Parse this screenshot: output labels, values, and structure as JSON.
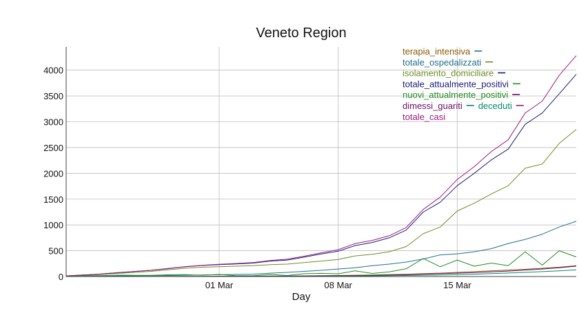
{
  "chart_data": {
    "type": "line",
    "title": "Veneto Region",
    "xlabel": "Day",
    "ylabel": "",
    "xlim": [
      "2020-02-21",
      "2020-03-22"
    ],
    "ylim": [
      0,
      4450
    ],
    "grid": true,
    "legend_position": "top-right",
    "x_ticks": [
      {
        "date": "2020-03-01",
        "label": "01 Mar"
      },
      {
        "date": "2020-03-08",
        "label": "08 Mar"
      },
      {
        "date": "2020-03-15",
        "label": "15 Mar"
      }
    ],
    "y_ticks": [
      0,
      500,
      1000,
      1500,
      2000,
      2500,
      3000,
      3500,
      4000
    ],
    "x": [
      "2020-02-21",
      "2020-02-22",
      "2020-02-23",
      "2020-02-24",
      "2020-02-25",
      "2020-02-26",
      "2020-02-27",
      "2020-02-28",
      "2020-02-29",
      "2020-03-01",
      "2020-03-02",
      "2020-03-03",
      "2020-03-04",
      "2020-03-05",
      "2020-03-06",
      "2020-03-07",
      "2020-03-08",
      "2020-03-09",
      "2020-03-10",
      "2020-03-11",
      "2020-03-12",
      "2020-03-13",
      "2020-03-14",
      "2020-03-15",
      "2020-03-16",
      "2020-03-17",
      "2020-03-18",
      "2020-03-19",
      "2020-03-20",
      "2020-03-21",
      "2020-03-22"
    ],
    "series": [
      {
        "name": "terapia_intensiva",
        "color": "#8b5a00",
        "values": [
          0,
          0,
          1,
          2,
          2,
          2,
          3,
          4,
          4,
          5,
          6,
          7,
          9,
          11,
          13,
          16,
          20,
          25,
          30,
          37,
          44,
          55,
          66,
          80,
          95,
          110,
          125,
          140,
          160,
          180,
          210
        ]
      },
      {
        "name": "totale_ospedalizzati",
        "color": "#1f6e8c",
        "values": [
          2,
          4,
          6,
          12,
          15,
          18,
          20,
          25,
          30,
          35,
          40,
          45,
          65,
          80,
          100,
          120,
          145,
          170,
          210,
          240,
          280,
          340,
          420,
          440,
          480,
          540,
          640,
          720,
          820,
          960,
          1070
        ]
      },
      {
        "name": "isolamento_domiciliare",
        "color": "#6b8e23",
        "values": [
          10,
          25,
          40,
          60,
          80,
          100,
          130,
          160,
          180,
          190,
          200,
          210,
          230,
          240,
          270,
          300,
          330,
          400,
          430,
          480,
          580,
          830,
          960,
          1270,
          1420,
          1600,
          1760,
          2100,
          2180,
          2580,
          2850
        ]
      },
      {
        "name": "totale_attualmente_positivi",
        "color": "#1a1a7a",
        "values": [
          12,
          29,
          47,
          74,
          97,
          120,
          153,
          189,
          214,
          230,
          245,
          260,
          300,
          320,
          375,
          437,
          490,
          600,
          660,
          750,
          900,
          1250,
          1440,
          1760,
          2000,
          2260,
          2470,
          2950,
          3170,
          3540,
          3920
        ]
      },
      {
        "name": "nuovi_attualmente_positivi",
        "color": "#228b22",
        "values": [
          12,
          17,
          18,
          27,
          23,
          23,
          33,
          36,
          25,
          40,
          15,
          15,
          40,
          20,
          55,
          62,
          53,
          110,
          60,
          90,
          150,
          350,
          190,
          320,
          200,
          260,
          210,
          480,
          220,
          500,
          380
        ]
      },
      {
        "name": "dimessi_guariti",
        "color": "#6a0d6a",
        "values": [
          0,
          0,
          0,
          0,
          0,
          0,
          0,
          1,
          2,
          3,
          4,
          5,
          6,
          8,
          10,
          12,
          15,
          18,
          22,
          28,
          35,
          45,
          55,
          65,
          75,
          90,
          105,
          125,
          145,
          170,
          200
        ]
      },
      {
        "name": "deceduti",
        "color": "#008b6b",
        "values": [
          0,
          0,
          1,
          1,
          1,
          1,
          1,
          2,
          2,
          2,
          3,
          3,
          4,
          4,
          5,
          6,
          8,
          10,
          13,
          16,
          20,
          25,
          30,
          38,
          46,
          56,
          68,
          80,
          95,
          110,
          130
        ]
      },
      {
        "name": "totale_casi",
        "color": "#9b1a7a",
        "values": [
          12,
          30,
          48,
          75,
          99,
          122,
          156,
          193,
          218,
          236,
          253,
          270,
          312,
          336,
          394,
          460,
          520,
          640,
          700,
          790,
          950,
          1300,
          1540,
          1880,
          2130,
          2420,
          2650,
          3170,
          3400,
          3900,
          4280
        ]
      }
    ]
  }
}
